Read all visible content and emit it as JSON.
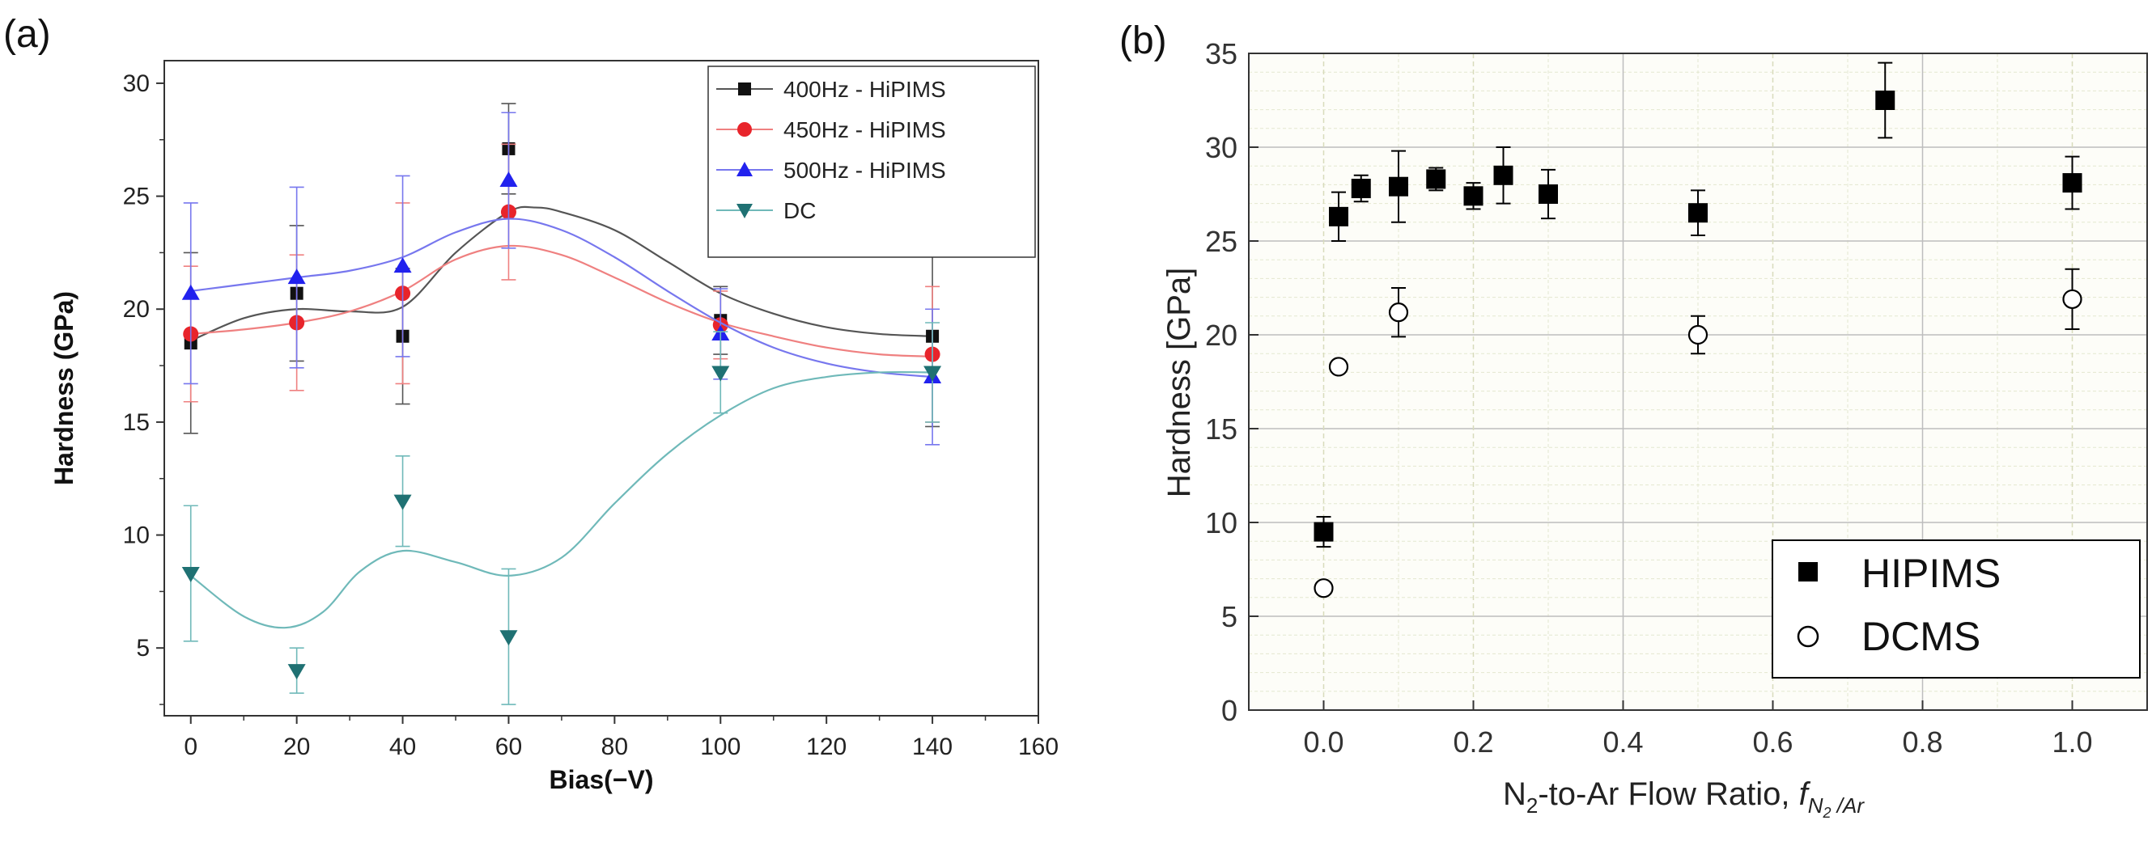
{
  "chart_data": [
    {
      "panel": "(a)",
      "type": "scatter",
      "title": "",
      "xlabel": "Bias(−V)",
      "ylabel": "Hardness (GPa)",
      "xlim": [
        -5,
        160
      ],
      "ylim": [
        2,
        31
      ],
      "xticks": [
        0,
        20,
        40,
        60,
        80,
        100,
        120,
        140,
        160
      ],
      "yticks": [
        5,
        10,
        15,
        20,
        25,
        30
      ],
      "grid": false,
      "legend_position": "top-right",
      "series": [
        {
          "name": "400Hz - HiPIMS",
          "marker": "square",
          "color": "#111111",
          "line_color": "#555555",
          "x": [
            0,
            20,
            40,
            60,
            100,
            140
          ],
          "y": [
            18.5,
            20.7,
            18.8,
            27.1,
            19.5,
            18.8
          ],
          "err": [
            4.0,
            3.0,
            3.0,
            2.0,
            1.5,
            4.0
          ],
          "curve_x": [
            0,
            10,
            20,
            30,
            40,
            50,
            60,
            65,
            70,
            80,
            90,
            100,
            110,
            120,
            130,
            140
          ],
          "curve_y": [
            18.6,
            19.6,
            20.0,
            19.9,
            20.1,
            22.5,
            24.3,
            24.5,
            24.3,
            23.5,
            22.1,
            20.7,
            19.8,
            19.2,
            18.9,
            18.8
          ]
        },
        {
          "name": "450Hz - HiPIMS",
          "marker": "circle",
          "color": "#e8242b",
          "line_color": "#ef8080",
          "x": [
            0,
            20,
            40,
            60,
            100,
            140
          ],
          "y": [
            18.9,
            19.4,
            20.7,
            24.3,
            19.3,
            18.0
          ],
          "err": [
            3.0,
            3.0,
            4.0,
            3.0,
            1.5,
            3.0
          ],
          "curve_x": [
            0,
            10,
            20,
            30,
            40,
            50,
            60,
            70,
            80,
            90,
            100,
            110,
            120,
            130,
            140
          ],
          "curve_y": [
            18.9,
            19.1,
            19.4,
            19.9,
            20.8,
            22.2,
            22.8,
            22.4,
            21.4,
            20.3,
            19.4,
            18.8,
            18.3,
            18.0,
            17.9
          ]
        },
        {
          "name": "500Hz - HiPIMS",
          "marker": "triangle-up",
          "color": "#2222ee",
          "line_color": "#7777ee",
          "x": [
            0,
            20,
            40,
            60,
            100,
            140
          ],
          "y": [
            20.7,
            21.4,
            21.9,
            25.7,
            18.9,
            17.0
          ],
          "err": [
            4.0,
            4.0,
            4.0,
            3.0,
            2.0,
            3.0
          ],
          "curve_x": [
            0,
            10,
            20,
            30,
            40,
            50,
            60,
            70,
            80,
            90,
            100,
            110,
            120,
            130,
            140
          ],
          "curve_y": [
            20.8,
            21.1,
            21.4,
            21.7,
            22.3,
            23.4,
            24.0,
            23.5,
            22.3,
            20.8,
            19.4,
            18.3,
            17.6,
            17.2,
            17.0
          ]
        },
        {
          "name": "DC",
          "marker": "triangle-down",
          "color": "#1f7173",
          "line_color": "#6fb9b9",
          "x": [
            0,
            20,
            40,
            60,
            100,
            140
          ],
          "y": [
            8.3,
            4.0,
            11.5,
            5.5,
            17.2,
            17.2
          ],
          "err": [
            3.0,
            1.0,
            2.0,
            3.0,
            1.8,
            2.2
          ],
          "curve_x": [
            0,
            10,
            18,
            25,
            32,
            40,
            50,
            60,
            70,
            80,
            90,
            100,
            110,
            120,
            130,
            140
          ],
          "curve_y": [
            8.2,
            6.4,
            5.9,
            6.6,
            8.4,
            9.3,
            8.8,
            8.2,
            9.0,
            11.4,
            13.6,
            15.3,
            16.5,
            17.0,
            17.2,
            17.2
          ]
        }
      ]
    },
    {
      "panel": "(b)",
      "type": "scatter",
      "title": "",
      "xlabel": "N2-to-Ar Flow Ratio, fN2/Ar",
      "ylabel": "Hardness [GPa]",
      "xlim": [
        -0.1,
        1.1
      ],
      "ylim": [
        0,
        35
      ],
      "xticks": [
        0.0,
        0.2,
        0.4,
        0.6,
        0.8,
        1.0
      ],
      "yticks": [
        0,
        5,
        10,
        15,
        20,
        25,
        30,
        35
      ],
      "grid": true,
      "legend_position": "bottom-right",
      "series": [
        {
          "name": "HIPIMS",
          "marker": "square-filled",
          "color": "#000000",
          "x": [
            0.0,
            0.02,
            0.05,
            0.1,
            0.15,
            0.2,
            0.24,
            0.3,
            0.5,
            0.75,
            1.0
          ],
          "y": [
            9.5,
            26.3,
            27.8,
            27.9,
            28.3,
            27.4,
            28.5,
            27.5,
            26.5,
            32.5,
            28.1
          ],
          "err": [
            0.8,
            1.3,
            0.7,
            1.9,
            0.6,
            0.7,
            1.5,
            1.3,
            1.2,
            2.0,
            1.4
          ]
        },
        {
          "name": "DCMS",
          "marker": "circle-open",
          "color": "#000000",
          "x": [
            0.0,
            0.02,
            0.1,
            0.5,
            1.0
          ],
          "y": [
            6.5,
            18.3,
            21.2,
            20.0,
            21.9
          ],
          "err": [
            0,
            0,
            1.3,
            1.0,
            1.6
          ]
        }
      ]
    }
  ],
  "labels": {
    "panel_a": "(a)",
    "panel_b": "(b)",
    "a_xlabel": "Bias(−V)",
    "a_ylabel": "Hardness (GPa)",
    "b_ylabel": "Hardness [GPa]",
    "b_xlabel_main": "N",
    "b_xlabel_sub": "2",
    "b_xlabel_rest": "-to-Ar Flow Ratio, ",
    "b_xlabel_f": "f",
    "b_xlabel_fsub_n": "N",
    "b_xlabel_fsub_2": "2",
    "b_xlabel_fsub_ar": " /Ar"
  }
}
